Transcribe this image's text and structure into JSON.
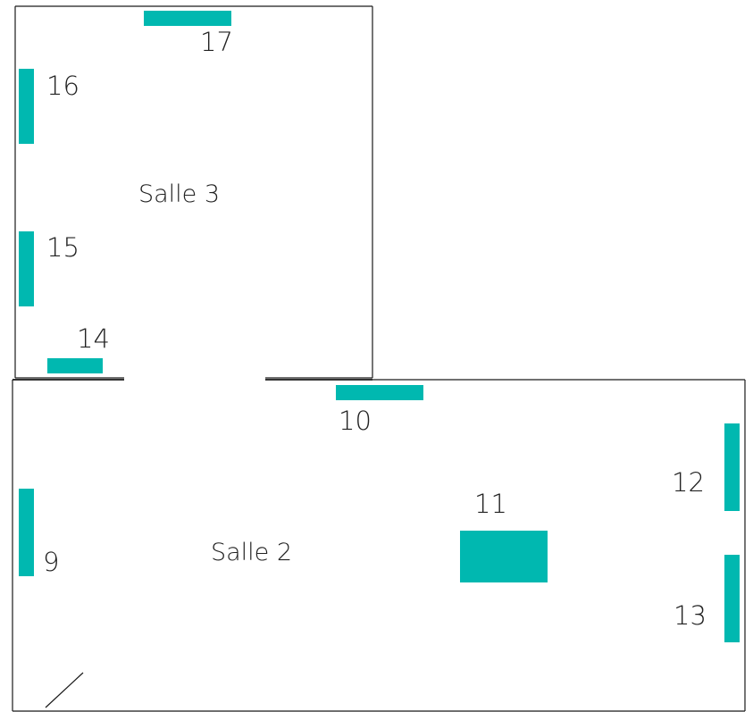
{
  "colors": {
    "exhibit": "#00b8b0",
    "wall": "#1a1a1a"
  },
  "rooms": {
    "salle3": {
      "name": "Salle 3"
    },
    "salle2": {
      "name": "Salle 2"
    }
  },
  "exhibits": [
    {
      "id": "9",
      "label": "9"
    },
    {
      "id": "10",
      "label": "10"
    },
    {
      "id": "11",
      "label": "11"
    },
    {
      "id": "12",
      "label": "12"
    },
    {
      "id": "13",
      "label": "13"
    },
    {
      "id": "14",
      "label": "14"
    },
    {
      "id": "15",
      "label": "15"
    },
    {
      "id": "16",
      "label": "16"
    },
    {
      "id": "17",
      "label": "17"
    }
  ]
}
